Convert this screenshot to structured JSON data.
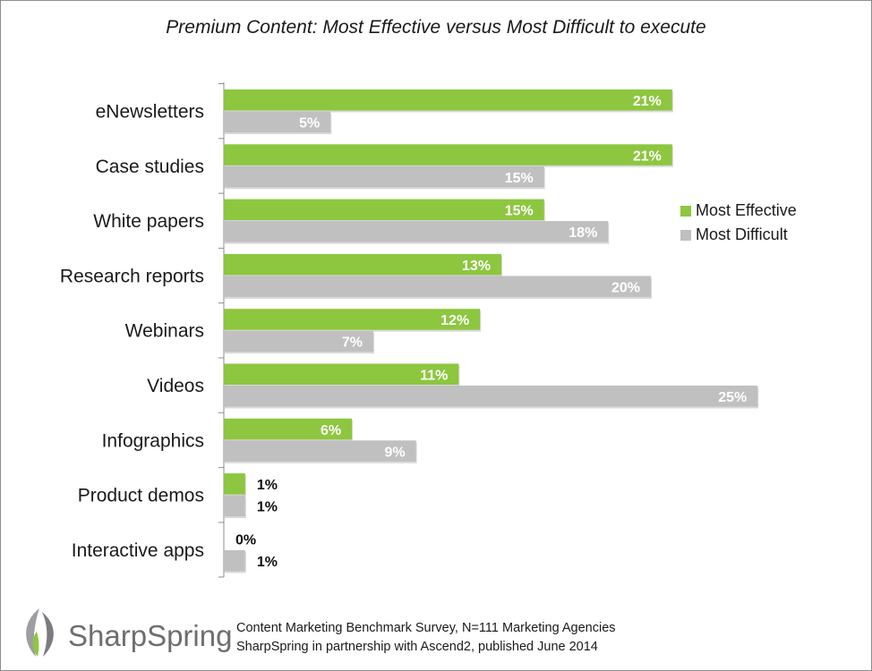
{
  "chart_data": {
    "type": "bar",
    "orientation": "horizontal",
    "title": "Premium Content: Most Effective versus Most Difficult to execute",
    "categories": [
      "eNewsletters",
      "Case studies",
      "White papers",
      "Research reports",
      "Webinars",
      "Videos",
      "Infographics",
      "Product demos",
      "Interactive apps"
    ],
    "series": [
      {
        "name": "Most Effective",
        "color": "#8dc63f",
        "values": [
          21,
          21,
          15,
          13,
          12,
          11,
          6,
          1,
          0
        ]
      },
      {
        "name": "Most Difficult",
        "color": "#c0c0c0",
        "values": [
          5,
          15,
          18,
          20,
          7,
          25,
          9,
          1,
          1
        ]
      }
    ],
    "value_format": "percent",
    "xlim": [
      0,
      30
    ],
    "legend_position": "right",
    "grid": false
  },
  "branding": {
    "logo_text_1": "Sharp",
    "logo_text_2": "Spring",
    "logo_icon": "sharpspring-leaf-icon"
  },
  "source": {
    "line1": "Content Marketing Benchmark Survey, N=111 Marketing Agencies",
    "line2": "SharpSpring in partnership with Ascend2, published June 2014"
  }
}
